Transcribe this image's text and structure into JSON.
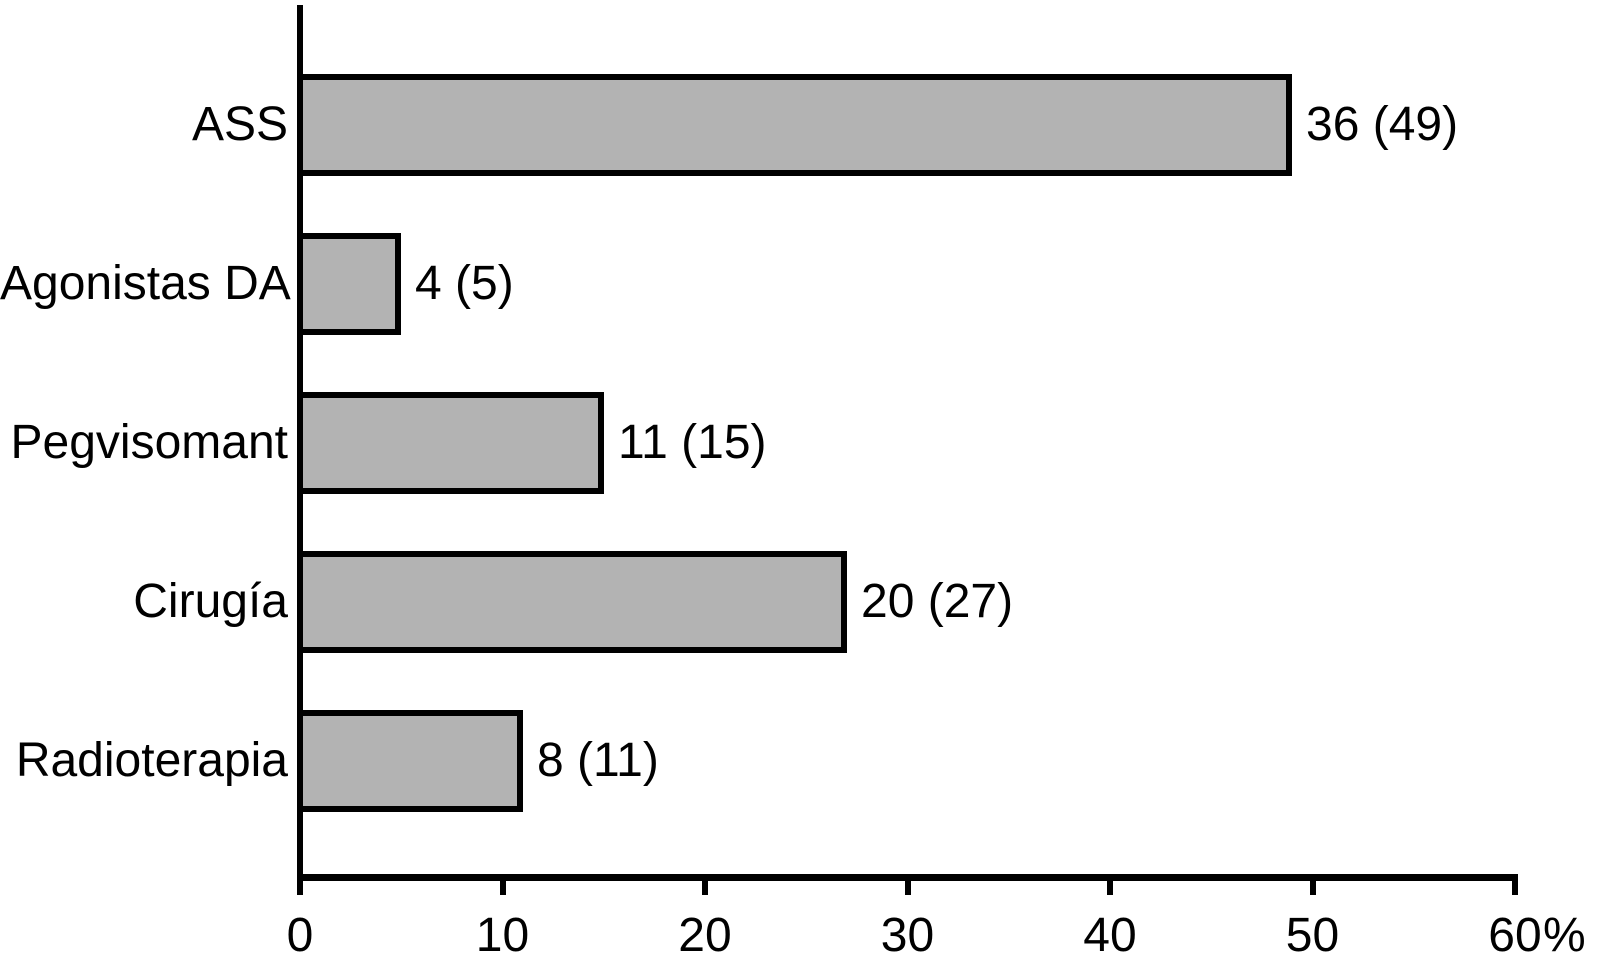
{
  "chart_data": {
    "type": "bar",
    "orientation": "horizontal",
    "title": "",
    "categories": [
      "ASS",
      "Agonistas DA",
      "Pegvisomant",
      "Cirugía",
      "Radioterapia"
    ],
    "values": [
      49,
      5,
      15,
      27,
      11
    ],
    "counts": [
      36,
      4,
      11,
      20,
      8
    ],
    "bar_labels": [
      "36 (49)",
      "4 (5)",
      "11 (15)",
      "20 (27)",
      "8 (11)"
    ],
    "label_format": "count (percent)",
    "xlabel": "%",
    "ylabel": "",
    "x_ticks": [
      "0",
      "10",
      "20",
      "30",
      "40",
      "50",
      "60"
    ],
    "x_tick_values": [
      0,
      10,
      20,
      30,
      40,
      50,
      60
    ],
    "xlim": [
      0,
      60
    ],
    "grid": false,
    "legend_position": "none",
    "colors": {
      "bar_fill": "#b3b3b3",
      "bar_border": "#000000",
      "axis": "#000000",
      "text": "#000000",
      "background": "#ffffff"
    }
  }
}
